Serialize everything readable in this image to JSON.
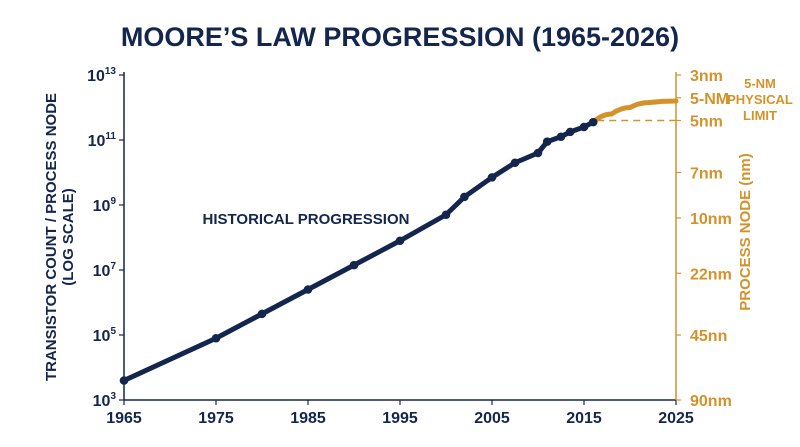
{
  "chart_data": {
    "type": "line",
    "title": "MOORE’S LAW PROGRESSION (1965-2026)",
    "ylabel_left": [
      "TRANSISTOR COUNT / PROCESS NODE",
      "(LOG SCALE)"
    ],
    "ylabel_right": "PROCESS NODE (nm)",
    "x": {
      "range": [
        1965,
        2025
      ],
      "ticks": [
        1965,
        1975,
        1985,
        1995,
        2005,
        2015,
        2025
      ]
    },
    "y_left": {
      "scale": "log10",
      "range_exponent": [
        3,
        13
      ],
      "ticks": [
        {
          "base": "10",
          "exp": "13",
          "value_exp": 13
        },
        {
          "base": "10",
          "exp": "11",
          "value_exp": 11
        },
        {
          "base": "10",
          "exp": "9",
          "value_exp": 9
        },
        {
          "base": "10",
          "exp": "7",
          "value_exp": 7
        },
        {
          "base": "10",
          "exp": "5",
          "value_exp": 5
        },
        {
          "base": "10",
          "exp": "3",
          "value_exp": 3
        }
      ]
    },
    "y_right": {
      "ticks": [
        {
          "label": "3nm",
          "value_exp": 13
        },
        {
          "label": "5-NM",
          "value_exp": 12.3
        },
        {
          "label": "5nm",
          "value_exp": 11.6
        },
        {
          "label": "7nm",
          "value_exp": 10
        },
        {
          "label": "10nm",
          "value_exp": 8.6
        },
        {
          "label": "22nm",
          "value_exp": 6.9
        },
        {
          "label": "45nn",
          "value_exp": 5
        },
        {
          "label": "90nm",
          "value_exp": 3
        }
      ]
    },
    "series": [
      {
        "name": "HISTORICAL PROGRESSION",
        "color": "#14264d",
        "points": [
          {
            "x": 1965,
            "y_exp": 3.6
          },
          {
            "x": 1975,
            "y_exp": 4.9
          },
          {
            "x": 1980,
            "y_exp": 5.65
          },
          {
            "x": 1985,
            "y_exp": 6.4
          },
          {
            "x": 1990,
            "y_exp": 7.15
          },
          {
            "x": 1995,
            "y_exp": 7.9
          },
          {
            "x": 2000,
            "y_exp": 8.7
          },
          {
            "x": 2002,
            "y_exp": 9.25
          },
          {
            "x": 2005,
            "y_exp": 9.85
          },
          {
            "x": 2007.5,
            "y_exp": 10.3
          },
          {
            "x": 2010,
            "y_exp": 10.6
          },
          {
            "x": 2011,
            "y_exp": 10.95
          },
          {
            "x": 2012.5,
            "y_exp": 11.1
          },
          {
            "x": 2013.5,
            "y_exp": 11.25
          },
          {
            "x": 2015,
            "y_exp": 11.4
          },
          {
            "x": 2016,
            "y_exp": 11.55
          }
        ]
      },
      {
        "name": "5-NM PHYSICAL LIMIT",
        "color": "#d4922b",
        "points": [
          {
            "x": 2016,
            "y_exp": 11.55
          },
          {
            "x": 2018,
            "y_exp": 11.8
          },
          {
            "x": 2020,
            "y_exp": 12.0
          },
          {
            "x": 2022,
            "y_exp": 12.15
          },
          {
            "x": 2025,
            "y_exp": 12.2
          }
        ]
      }
    ],
    "limit_reference_exp": 11.6,
    "annotations": {
      "historical": "HISTORICAL PROGRESSION",
      "limit_lines": [
        "5-NM",
        "PHYSICAL",
        "LIMIT"
      ]
    }
  },
  "colors": {
    "navy": "#14264d",
    "gold": "#d4922b"
  }
}
